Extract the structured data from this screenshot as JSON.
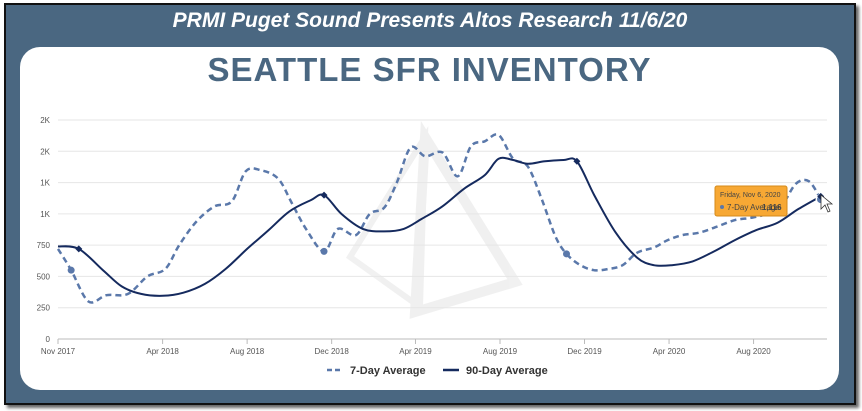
{
  "banner": "PRMI Puget Sound Presents Altos Research 11/6/20",
  "title": "SEATTLE SFR INVENTORY",
  "tooltip": {
    "date": "Friday, Nov 6, 2020",
    "series": "7-Day Average",
    "value": "1,116"
  },
  "colors": {
    "frame": "#4a6781",
    "series_7day": "#5a78aa",
    "series_90day": "#152a5e",
    "tooltip_bg": "#f7a834"
  },
  "chart_data": {
    "type": "line",
    "title": "SEATTLE SFR INVENTORY",
    "xlabel": "",
    "ylabel": "",
    "y_ticks": [
      0,
      250,
      500,
      750,
      1000,
      1250,
      1500,
      1750
    ],
    "y_tick_labels": [
      "0",
      "250",
      "500",
      "750",
      "1K",
      "1K",
      "2K",
      "2K"
    ],
    "ylim": [
      0,
      1750
    ],
    "x_ticks": [
      "Nov 2017",
      "Apr 2018",
      "Aug 2018",
      "Dec 2018",
      "Apr 2019",
      "Aug 2019",
      "Dec 2019",
      "Apr 2020",
      "Aug 2020"
    ],
    "xlim": [
      "2017-11-01",
      "2020-11-15"
    ],
    "grid": true,
    "legend": "bottom",
    "series": [
      {
        "name": "7-Day Average",
        "style": "dashed",
        "x": [
          "2017-11-01",
          "2017-11-20",
          "2017-12-15",
          "2018-01-10",
          "2018-02-10",
          "2018-03-10",
          "2018-04-05",
          "2018-04-25",
          "2018-05-20",
          "2018-06-15",
          "2018-07-10",
          "2018-07-30",
          "2018-08-20",
          "2018-09-15",
          "2018-10-05",
          "2018-10-25",
          "2018-11-20",
          "2018-12-10",
          "2019-01-05",
          "2019-01-25",
          "2019-02-15",
          "2019-03-05",
          "2019-03-25",
          "2019-04-15",
          "2019-05-10",
          "2019-06-01",
          "2019-06-20",
          "2019-07-10",
          "2019-07-30",
          "2019-08-20",
          "2019-09-10",
          "2019-09-30",
          "2019-10-20",
          "2019-11-05",
          "2019-11-25",
          "2019-12-15",
          "2020-01-05",
          "2020-01-25",
          "2020-02-15",
          "2020-03-10",
          "2020-03-30",
          "2020-04-20",
          "2020-05-15",
          "2020-06-10",
          "2020-07-05",
          "2020-07-30",
          "2020-08-20",
          "2020-09-10",
          "2020-10-01",
          "2020-10-20",
          "2020-11-06"
        ],
        "values": [
          720,
          550,
          300,
          350,
          360,
          500,
          560,
          750,
          940,
          1060,
          1100,
          1340,
          1350,
          1280,
          1080,
          880,
          700,
          880,
          830,
          1000,
          1050,
          1250,
          1530,
          1460,
          1490,
          1300,
          1540,
          1580,
          1630,
          1440,
          1380,
          1120,
          820,
          680,
          590,
          550,
          560,
          590,
          690,
          730,
          790,
          830,
          850,
          900,
          950,
          970,
          1000,
          1060,
          1240,
          1260,
          1116
        ]
      },
      {
        "name": "90-Day Average",
        "style": "solid",
        "x": [
          "2017-11-01",
          "2017-12-01",
          "2018-01-05",
          "2018-02-01",
          "2018-03-01",
          "2018-04-01",
          "2018-05-01",
          "2018-06-01",
          "2018-07-01",
          "2018-08-01",
          "2018-09-01",
          "2018-10-01",
          "2018-11-01",
          "2018-11-20",
          "2018-12-15",
          "2019-01-15",
          "2019-02-15",
          "2019-03-15",
          "2019-04-10",
          "2019-05-10",
          "2019-06-10",
          "2019-07-10",
          "2019-07-30",
          "2019-08-20",
          "2019-09-10",
          "2019-10-05",
          "2019-11-01",
          "2019-11-20",
          "2019-12-15",
          "2020-01-15",
          "2020-02-15",
          "2020-03-10",
          "2020-04-05",
          "2020-05-05",
          "2020-06-05",
          "2020-07-05",
          "2020-08-05",
          "2020-09-05",
          "2020-10-05",
          "2020-11-06"
        ],
        "values": [
          740,
          720,
          550,
          420,
          360,
          345,
          370,
          440,
          560,
          720,
          870,
          1020,
          1110,
          1150,
          1000,
          880,
          860,
          880,
          960,
          1060,
          1200,
          1310,
          1440,
          1430,
          1400,
          1420,
          1430,
          1420,
          1150,
          850,
          650,
          590,
          590,
          620,
          700,
          790,
          870,
          930,
          1040,
          1140
        ]
      }
    ]
  }
}
